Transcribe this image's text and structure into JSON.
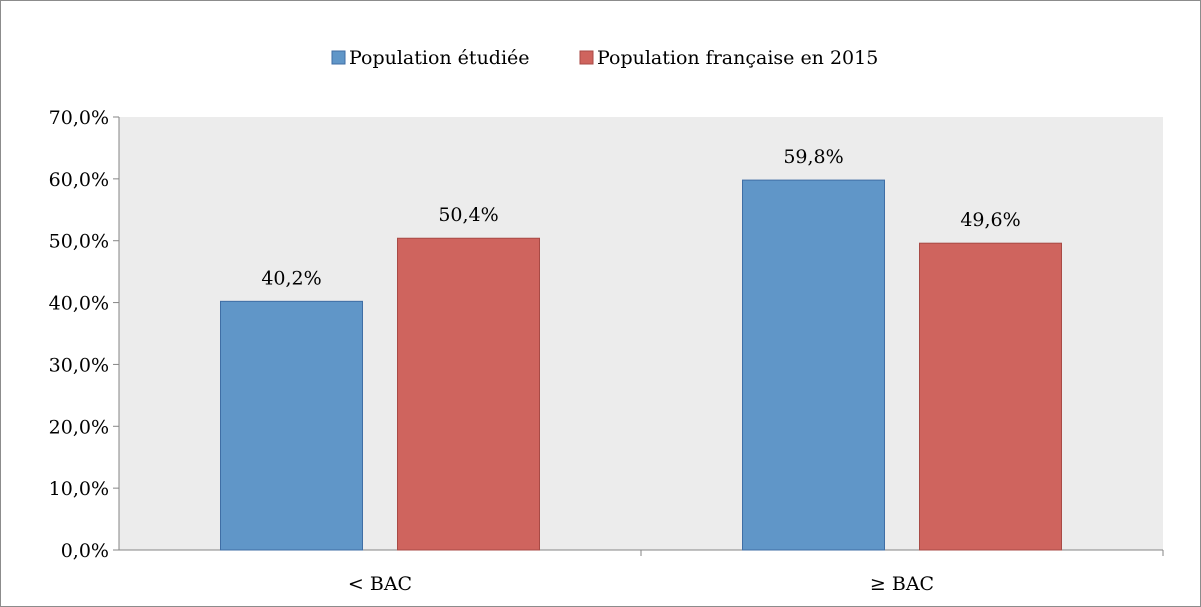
{
  "chart_data": {
    "type": "bar",
    "title": "",
    "xlabel": "",
    "ylabel": "",
    "categories": [
      "< BAC",
      "≥ BAC"
    ],
    "series": [
      {
        "name": "Population étudiée",
        "values": [
          40.2,
          59.8
        ],
        "data_labels": [
          "40,2%",
          "59,8%"
        ],
        "color": "#6096c8"
      },
      {
        "name": "Population française en 2015",
        "values": [
          50.4,
          49.6
        ],
        "data_labels": [
          "50,4%",
          "49,6%"
        ],
        "color": "#cf645e"
      }
    ],
    "ylim": [
      0,
      70
    ],
    "y_ticks": [
      0,
      10,
      20,
      30,
      40,
      50,
      60,
      70
    ],
    "y_tick_labels": [
      "0,0%",
      "10,0%",
      "20,0%",
      "30,0%",
      "40,0%",
      "50,0%",
      "60,0%",
      "70,0%"
    ],
    "legend_position": "top",
    "plot_background": "#ececec",
    "grid": false
  }
}
